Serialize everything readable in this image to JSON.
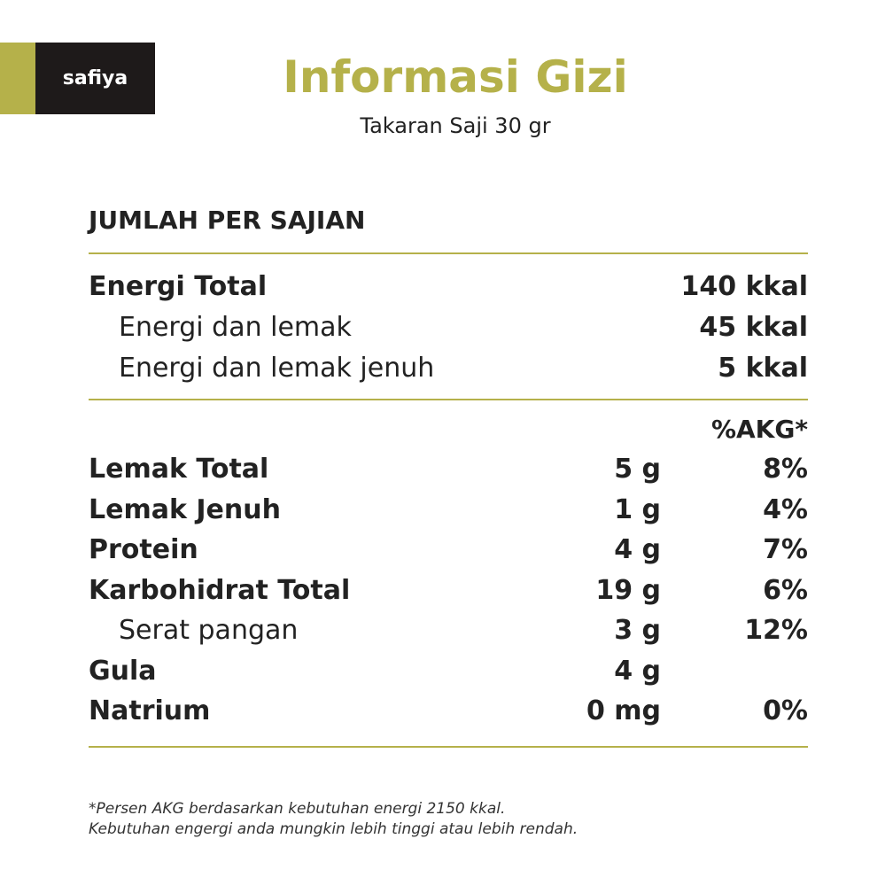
{
  "header": {
    "logo": "safiya",
    "title": "Informasi Gizi",
    "subtitle": "Takaran Saji 30 gr"
  },
  "section_title": "JUMLAH PER SAJIAN",
  "energy": [
    {
      "label": "Energi Total",
      "value": "140 kkal",
      "bold": true
    },
    {
      "label": "Energi dan lemak",
      "value": "45 kkal",
      "bold": false
    },
    {
      "label": "Energi dan lemak jenuh",
      "value": "5 kkal",
      "bold": false
    }
  ],
  "akg_header": "%AKG*",
  "nutrients": [
    {
      "label": "Lemak Total",
      "amount": "5 g",
      "akg": "8%",
      "bold": true
    },
    {
      "label": "Lemak Jenuh",
      "amount": "1 g",
      "akg": "4%",
      "bold": true
    },
    {
      "label": "Protein",
      "amount": "4 g",
      "akg": "7%",
      "bold": true
    },
    {
      "label": "Karbohidrat Total",
      "amount": "19 g",
      "akg": "6%",
      "bold": true
    },
    {
      "label": "Serat pangan",
      "amount": "3 g",
      "akg": "12%",
      "bold": false
    },
    {
      "label": "Gula",
      "amount": "4 g",
      "akg": null,
      "bold": true
    },
    {
      "label": "Natrium",
      "amount": "0 mg",
      "akg": "0%",
      "bold": true
    }
  ],
  "footnote": [
    "*Persen AKG berdasarkan kebutuhan energi 2150 kkal.",
    "Kebutuhan engergi anda mungkin lebih tinggi atau lebih rendah."
  ]
}
